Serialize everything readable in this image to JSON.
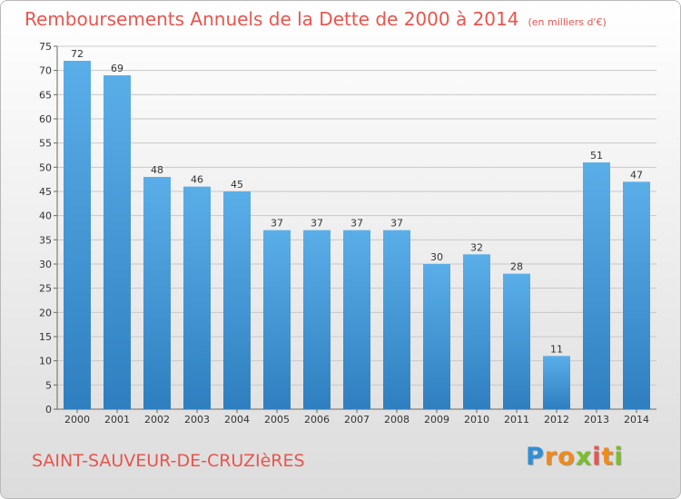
{
  "title": "Remboursements Annuels de la Dette de 2000 à 2014",
  "subtitle": "(en milliers d'€)",
  "commune": "SAINT-SAUVEUR-DE-CRUZIèRES",
  "logo": {
    "text": "Proxiti",
    "letters": [
      {
        "ch": "P",
        "color": "#2f8fd8"
      },
      {
        "ch": "r",
        "color": "#f08a1c"
      },
      {
        "ch": "o",
        "color": "#f08a1c"
      },
      {
        "ch": "x",
        "color": "#7bbf2a"
      },
      {
        "ch": "i",
        "color": "#e8554e"
      },
      {
        "ch": "t",
        "color": "#f08a1c"
      },
      {
        "ch": "i",
        "color": "#7bbf2a"
      }
    ]
  },
  "colors": {
    "title": "#e8554e",
    "bar_top": "#5aaee8",
    "bar_bottom": "#2f7fc0",
    "grid": "#c8c8c8"
  },
  "chart_data": {
    "type": "bar",
    "categories": [
      "2000",
      "2001",
      "2002",
      "2003",
      "2004",
      "2005",
      "2006",
      "2007",
      "2008",
      "2009",
      "2010",
      "2011",
      "2012",
      "2013",
      "2014"
    ],
    "values": [
      72,
      69,
      48,
      46,
      45,
      37,
      37,
      37,
      37,
      30,
      32,
      28,
      11,
      51,
      47
    ],
    "ylim": [
      0,
      75
    ],
    "yticks": [
      0,
      5,
      10,
      15,
      20,
      25,
      30,
      35,
      40,
      45,
      50,
      55,
      60,
      65,
      70,
      75
    ],
    "grid": true
  }
}
